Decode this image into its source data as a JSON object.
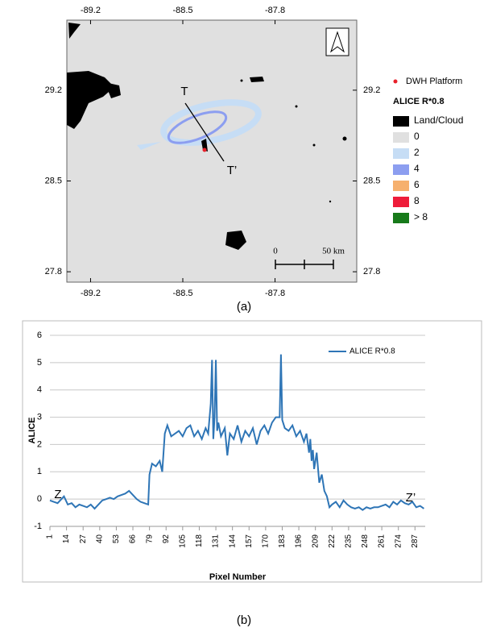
{
  "map": {
    "xticks": [
      -89.2,
      -88.5,
      -87.8
    ],
    "yticks": [
      29.2,
      28.5,
      27.8
    ],
    "xlim": [
      -89.38,
      -87.18
    ],
    "ylim": [
      27.72,
      29.74
    ],
    "transect_start": "T",
    "transect_end": "T’",
    "platform": {
      "label": "DWH Platform",
      "color": "#e8202a"
    },
    "legend_title": "ALICE R*0.8",
    "legend_items": [
      {
        "label": "Land/Cloud",
        "color": "#000000"
      },
      {
        "label": "0",
        "color": "#e0e0e0"
      },
      {
        "label": "2",
        "color": "#c6ddf5"
      },
      {
        "label": "4",
        "color": "#8c9ef0"
      },
      {
        "label": "6",
        "color": "#f6b06e"
      },
      {
        "label": "8",
        "color": "#ee1c3a"
      },
      {
        "label": "> 8",
        "color": "#177a1a"
      }
    ],
    "scale_bar": {
      "start": "0",
      "end": "50 km"
    },
    "caption": "(a)"
  },
  "chart_data": {
    "type": "line",
    "caption": "(b)",
    "xlabel": "Pixel Number",
    "ylabel": "ALICE",
    "annotations": [
      "Z",
      "Z’"
    ],
    "x": [
      1,
      4,
      7,
      10,
      12,
      15,
      18,
      21,
      24,
      27,
      30,
      33,
      36,
      39,
      42,
      45,
      48,
      51,
      54,
      57,
      60,
      63,
      66,
      69,
      72,
      75,
      78,
      79,
      81,
      84,
      87,
      89,
      91,
      93,
      96,
      99,
      102,
      105,
      108,
      111,
      114,
      117,
      120,
      123,
      125,
      127,
      128,
      129,
      130,
      131,
      132,
      133,
      135,
      138,
      140,
      142,
      145,
      148,
      151,
      154,
      157,
      160,
      163,
      166,
      169,
      172,
      175,
      178,
      181,
      182,
      183,
      185,
      188,
      191,
      194,
      197,
      200,
      202,
      204,
      205,
      206,
      207,
      208,
      210,
      212,
      214,
      216,
      218,
      220,
      222,
      225,
      228,
      231,
      234,
      237,
      240,
      243,
      246,
      249,
      252,
      255,
      258,
      261,
      264,
      267,
      270,
      273,
      276,
      279,
      282,
      285,
      288,
      291,
      294
    ],
    "series": [
      {
        "name": "ALICE R*0.8",
        "color": "#2e75b6",
        "values": [
          -0.05,
          -0.1,
          -0.15,
          0.0,
          0.1,
          -0.2,
          -0.15,
          -0.3,
          -0.2,
          -0.25,
          -0.3,
          -0.2,
          -0.35,
          -0.2,
          -0.05,
          0.0,
          0.05,
          0.0,
          0.1,
          0.15,
          0.2,
          0.3,
          0.15,
          0.0,
          -0.1,
          -0.15,
          -0.2,
          0.9,
          1.3,
          1.2,
          1.4,
          1.0,
          2.4,
          2.7,
          2.3,
          2.4,
          2.5,
          2.3,
          2.6,
          2.7,
          2.3,
          2.5,
          2.2,
          2.6,
          2.4,
          3.5,
          5.1,
          2.2,
          3.0,
          5.1,
          2.5,
          2.8,
          2.3,
          2.6,
          1.6,
          2.4,
          2.2,
          2.7,
          2.1,
          2.5,
          2.3,
          2.6,
          2.0,
          2.5,
          2.7,
          2.4,
          2.8,
          3.0,
          3.0,
          5.3,
          2.9,
          2.6,
          2.5,
          2.7,
          2.3,
          2.5,
          2.1,
          2.4,
          1.7,
          2.2,
          1.4,
          1.8,
          1.1,
          1.7,
          0.6,
          0.9,
          0.3,
          0.1,
          -0.3,
          -0.2,
          -0.1,
          -0.3,
          -0.05,
          -0.2,
          -0.3,
          -0.35,
          -0.3,
          -0.4,
          -0.3,
          -0.35,
          -0.3,
          -0.3,
          -0.25,
          -0.2,
          -0.3,
          -0.1,
          -0.2,
          -0.05,
          -0.15,
          -0.2,
          -0.1,
          -0.3,
          -0.25,
          -0.35
        ]
      }
    ],
    "xlim": [
      1,
      295
    ],
    "xticks": [
      1,
      14,
      27,
      40,
      53,
      66,
      79,
      92,
      105,
      118,
      131,
      144,
      157,
      170,
      183,
      196,
      209,
      222,
      235,
      248,
      261,
      274,
      287
    ],
    "ylim": [
      -1,
      6
    ],
    "yticks": [
      -1,
      0,
      1,
      2,
      3,
      4,
      5,
      6
    ],
    "grid": true
  }
}
